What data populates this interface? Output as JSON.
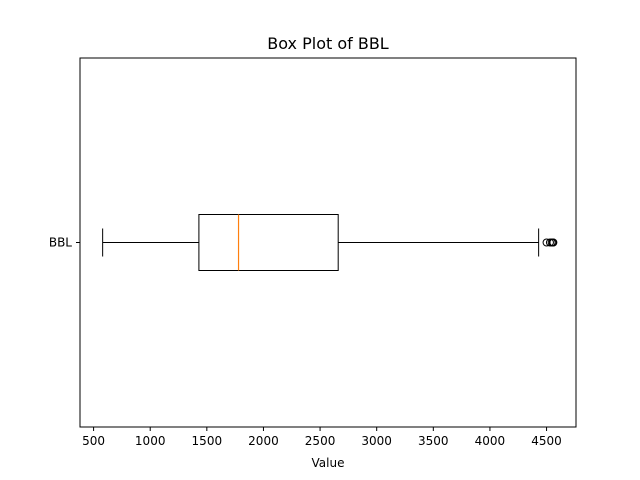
{
  "chart_data": {
    "type": "box",
    "title": "Box Plot of BBL",
    "xlabel": "Value",
    "ylabel": "",
    "orientation": "horizontal",
    "grid": false,
    "xlim": [
      380,
      4760
    ],
    "xticks": [
      500,
      1000,
      1500,
      2000,
      2500,
      3000,
      3500,
      4000,
      4500
    ],
    "xtick_labels": [
      "500",
      "1000",
      "1500",
      "2000",
      "2500",
      "3000",
      "3500",
      "4000",
      "4500"
    ],
    "categories": [
      "BBL"
    ],
    "series": [
      {
        "name": "BBL",
        "whisker_low": 580,
        "q1": 1430,
        "median": 1780,
        "q3": 2660,
        "whisker_high": 4430,
        "outliers": [
          4500,
          4530,
          4545,
          4555,
          4560
        ]
      }
    ],
    "colors": {
      "box": "#000000",
      "median": "#ff7f0e",
      "whisker": "#000000",
      "outlier": "#000000"
    }
  }
}
